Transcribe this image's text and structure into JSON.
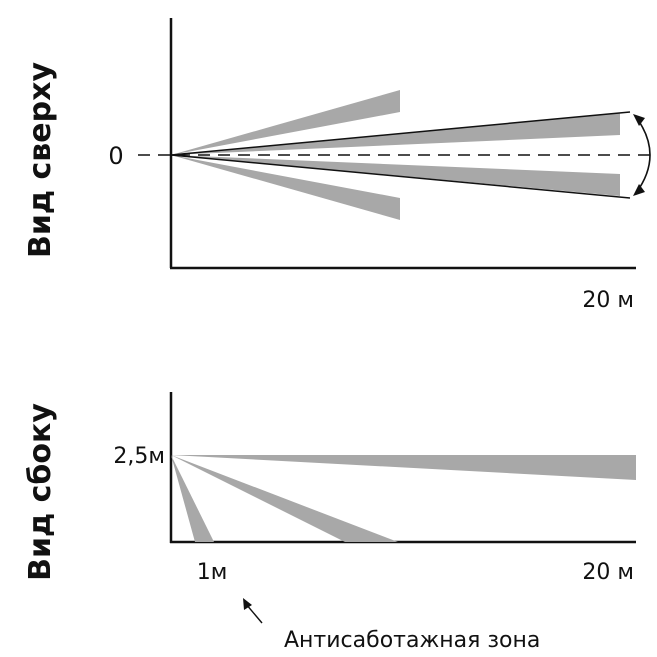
{
  "top_view": {
    "title": "Вид сверху",
    "origin_label": "0",
    "range_label": "20 м"
  },
  "side_view": {
    "title": "Вид сбоку",
    "height_label": "2,5м",
    "near_label": "1м",
    "range_label": "20 м",
    "anti_tamper_label": "Антисаботажная зона"
  },
  "colors": {
    "zone_fill": "#a8a8a8",
    "line": "#111111"
  }
}
